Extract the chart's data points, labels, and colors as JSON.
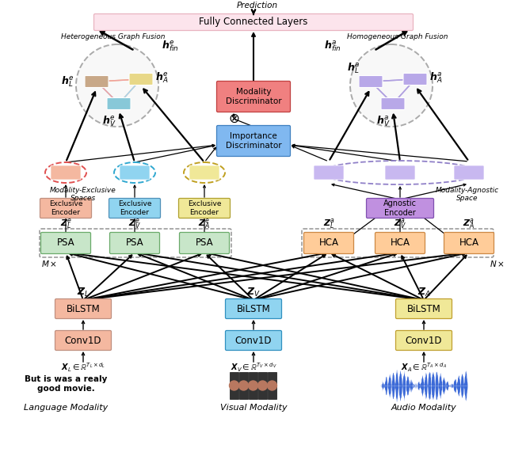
{
  "bg_color": "#ffffff",
  "fc_color": "#fce4ec",
  "fc_ec": "#e8b4c0",
  "fc_text": "Fully Connected Layers",
  "pred_text": "Prediction",
  "hetero_text": "Heterogeneous Graph Fusion",
  "homo_text": "Homogeneous Graph Fusion",
  "excl_spaces_text": "Modality-Exclusive\nSpaces",
  "agnostic_space_text": "Modality-Agnostic\nSpace",
  "md_text": "Modality\nDiscriminator",
  "id_text": "Importance\nDiscriminator",
  "ae_text": "Agnostic\nEncoder",
  "lang_text": "Language Modality",
  "vis_text": "Visual Modality",
  "audio_text": "Audio Modality",
  "quote_text": "But is was a realy\ngood movie.",
  "psa_color": "#c8e6c9",
  "psa_ec": "#6aaa6a",
  "hca_color": "#ffcc99",
  "hca_ec": "#cc8844",
  "bilstm_l_color": "#f4b8a0",
  "bilstm_v_color": "#90d4f0",
  "bilstm_a_color": "#f0e898",
  "conv_l_color": "#f4b8a0",
  "conv_v_color": "#90d4f0",
  "conv_a_color": "#f0e898",
  "ee_l_color": "#f4b8a0",
  "ee_v_color": "#90d4f0",
  "ee_a_color": "#f0e898",
  "md_color": "#f08080",
  "md_ec": "#c04040",
  "id_color": "#80b8f0",
  "id_ec": "#4080c0",
  "ae_color": "#c090e0",
  "ae_ec": "#8050b0",
  "het_node_l": "#c8a888",
  "het_node_v": "#88c8d8",
  "het_node_a": "#e8d888",
  "hom_node": "#b8a8e8",
  "arep_color": "#c8b8f0",
  "arep_ec": "#9080c0",
  "erep_l_color": "#f4b8a0",
  "erep_v_color": "#90d4f0",
  "erep_a_color": "#f0e898",
  "erep_l_ec": "#e05050",
  "erep_v_ec": "#30a8d0",
  "erep_a_ec": "#c0a020"
}
